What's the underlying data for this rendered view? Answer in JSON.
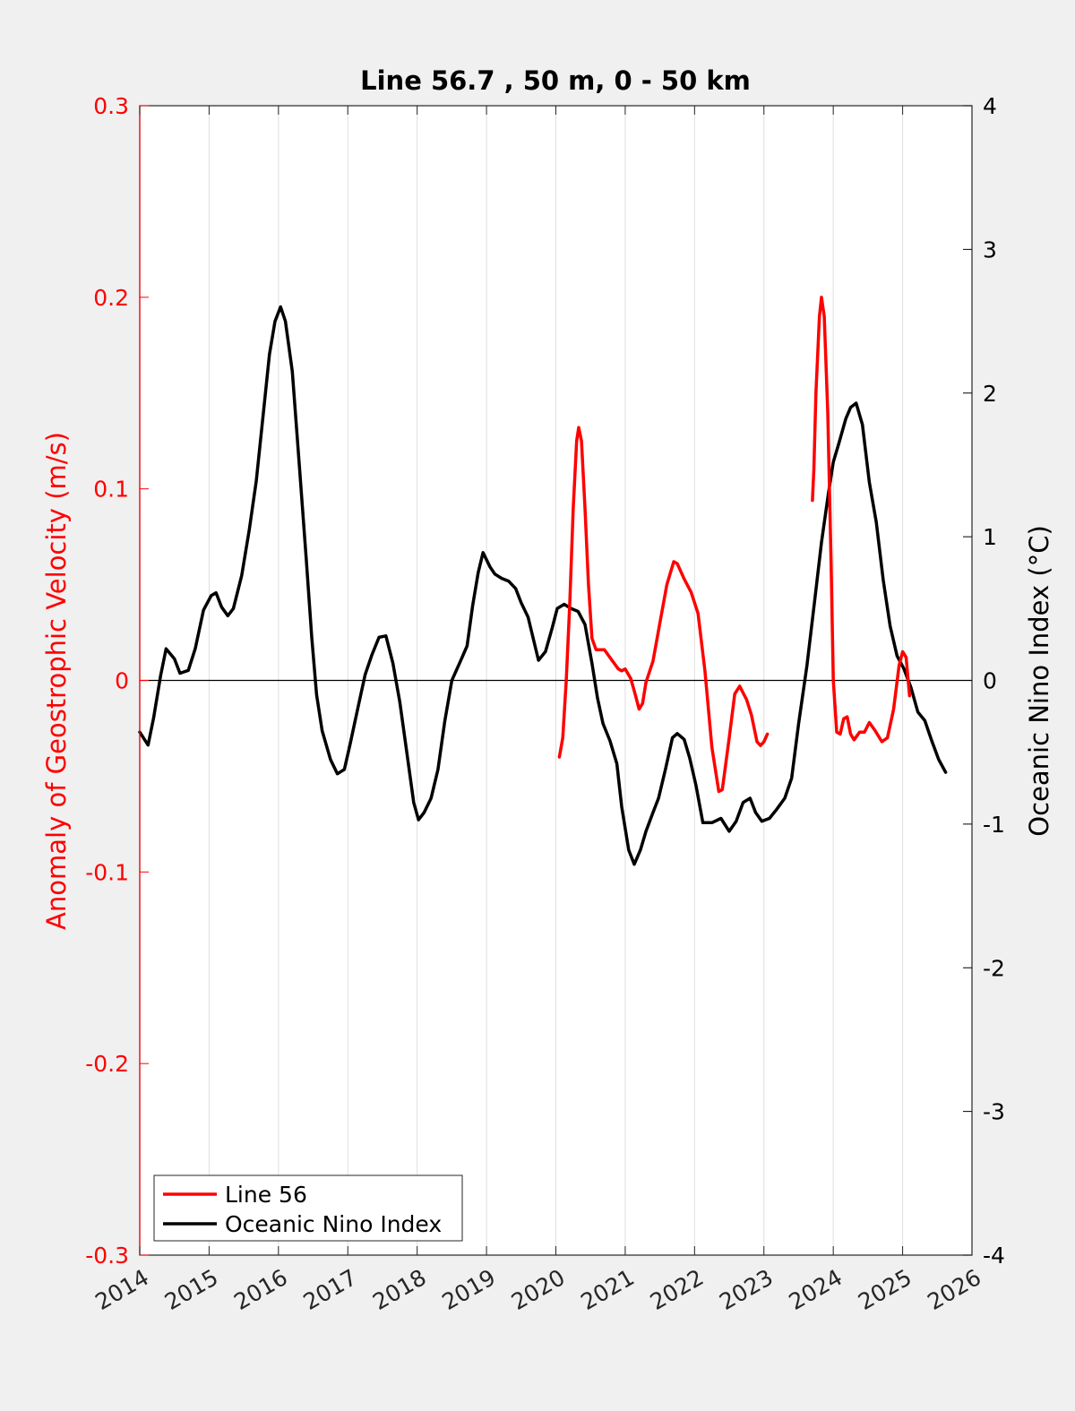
{
  "chart_data": {
    "type": "line",
    "title": "Line 56.7 , 50 m, 0 - 50 km",
    "xlabel": "",
    "ylabel_left": "Anomaly of Geostrophic Velocity (m/s)",
    "ylabel_right": "Oceanic Nino Index (°C)",
    "xlim": [
      2014,
      2026
    ],
    "ylim_left": [
      -0.3,
      0.3
    ],
    "ylim_right": [
      -4,
      4
    ],
    "x_ticks": [
      "2014",
      "2015",
      "2016",
      "2017",
      "2018",
      "2019",
      "2020",
      "2021",
      "2022",
      "2023",
      "2024",
      "2025",
      "2026"
    ],
    "y_ticks_left": [
      "-0.3",
      "-0.2",
      "-0.1",
      "0",
      "0.1",
      "0.2",
      "0.3"
    ],
    "y_ticks_right": [
      "-4",
      "-3",
      "-2",
      "-1",
      "0",
      "1",
      "2",
      "3",
      "4"
    ],
    "grid": "vertical",
    "zero_line": true,
    "legend_position": "bottom-left",
    "colors": {
      "line56": "#ff0000",
      "oni": "#000000",
      "left_axis": "#ff0000",
      "right_axis": "#000000"
    },
    "series": [
      {
        "name": "Line 56",
        "axis": "left",
        "segments": [
          [
            [
              2020.05,
              -0.04
            ],
            [
              2020.1,
              -0.03
            ],
            [
              2020.15,
              0.0
            ],
            [
              2020.2,
              0.04
            ],
            [
              2020.25,
              0.09
            ],
            [
              2020.3,
              0.125
            ],
            [
              2020.33,
              0.132
            ],
            [
              2020.37,
              0.125
            ],
            [
              2020.42,
              0.09
            ],
            [
              2020.47,
              0.05
            ],
            [
              2020.52,
              0.022
            ],
            [
              2020.58,
              0.016
            ],
            [
              2020.7,
              0.016
            ],
            [
              2020.8,
              0.011
            ],
            [
              2020.9,
              0.006
            ],
            [
              2020.95,
              0.005
            ],
            [
              2021.0,
              0.006
            ],
            [
              2021.08,
              0.001
            ],
            [
              2021.15,
              -0.008
            ],
            [
              2021.2,
              -0.015
            ],
            [
              2021.25,
              -0.012
            ],
            [
              2021.3,
              -0.001
            ],
            [
              2021.4,
              0.01
            ],
            [
              2021.5,
              0.03
            ],
            [
              2021.6,
              0.05
            ],
            [
              2021.7,
              0.062
            ],
            [
              2021.75,
              0.061
            ],
            [
              2021.85,
              0.053
            ],
            [
              2021.95,
              0.046
            ],
            [
              2022.05,
              0.035
            ],
            [
              2022.15,
              0.005
            ],
            [
              2022.25,
              -0.035
            ],
            [
              2022.35,
              -0.058
            ],
            [
              2022.4,
              -0.057
            ],
            [
              2022.5,
              -0.03
            ],
            [
              2022.58,
              -0.007
            ],
            [
              2022.65,
              -0.003
            ],
            [
              2022.75,
              -0.01
            ],
            [
              2022.82,
              -0.018
            ],
            [
              2022.9,
              -0.032
            ],
            [
              2022.95,
              -0.034
            ],
            [
              2023.0,
              -0.032
            ],
            [
              2023.05,
              -0.028
            ]
          ],
          [
            [
              2023.7,
              0.094
            ],
            [
              2023.72,
              0.11
            ],
            [
              2023.75,
              0.15
            ],
            [
              2023.8,
              0.19
            ],
            [
              2023.83,
              0.2
            ],
            [
              2023.87,
              0.19
            ],
            [
              2023.92,
              0.14
            ],
            [
              2023.97,
              0.06
            ],
            [
              2024.0,
              0.0
            ],
            [
              2024.05,
              -0.027
            ],
            [
              2024.1,
              -0.028
            ],
            [
              2024.15,
              -0.02
            ],
            [
              2024.2,
              -0.019
            ],
            [
              2024.25,
              -0.028
            ],
            [
              2024.3,
              -0.031
            ],
            [
              2024.38,
              -0.027
            ],
            [
              2024.45,
              -0.027
            ],
            [
              2024.52,
              -0.022
            ],
            [
              2024.6,
              -0.026
            ],
            [
              2024.7,
              -0.032
            ],
            [
              2024.78,
              -0.03
            ],
            [
              2024.87,
              -0.015
            ],
            [
              2024.95,
              0.008
            ],
            [
              2025.0,
              0.015
            ],
            [
              2025.05,
              0.012
            ],
            [
              2025.1,
              -0.008
            ]
          ]
        ]
      },
      {
        "name": "Oceanic Nino Index",
        "axis": "right",
        "segments": [
          [
            [
              2014.0,
              -0.36
            ],
            [
              2014.12,
              -0.45
            ],
            [
              2014.2,
              -0.26
            ],
            [
              2014.3,
              0.03
            ],
            [
              2014.38,
              0.22
            ],
            [
              2014.5,
              0.15
            ],
            [
              2014.58,
              0.05
            ],
            [
              2014.7,
              0.07
            ],
            [
              2014.8,
              0.22
            ],
            [
              2014.92,
              0.49
            ],
            [
              2015.03,
              0.59
            ],
            [
              2015.1,
              0.61
            ],
            [
              2015.18,
              0.51
            ],
            [
              2015.27,
              0.45
            ],
            [
              2015.35,
              0.5
            ],
            [
              2015.47,
              0.73
            ],
            [
              2015.58,
              1.05
            ],
            [
              2015.68,
              1.39
            ],
            [
              2015.78,
              1.85
            ],
            [
              2015.87,
              2.27
            ],
            [
              2015.95,
              2.5
            ],
            [
              2016.03,
              2.6
            ],
            [
              2016.1,
              2.5
            ],
            [
              2016.2,
              2.15
            ],
            [
              2016.3,
              1.5
            ],
            [
              2016.4,
              0.85
            ],
            [
              2016.48,
              0.3
            ],
            [
              2016.55,
              -0.1
            ],
            [
              2016.63,
              -0.35
            ],
            [
              2016.75,
              -0.55
            ],
            [
              2016.85,
              -0.65
            ],
            [
              2016.95,
              -0.62
            ],
            [
              2017.03,
              -0.45
            ],
            [
              2017.15,
              -0.18
            ],
            [
              2017.25,
              0.04
            ],
            [
              2017.35,
              0.18
            ],
            [
              2017.45,
              0.3
            ],
            [
              2017.55,
              0.31
            ],
            [
              2017.65,
              0.12
            ],
            [
              2017.75,
              -0.15
            ],
            [
              2017.85,
              -0.5
            ],
            [
              2017.95,
              -0.85
            ],
            [
              2018.02,
              -0.97
            ],
            [
              2018.1,
              -0.92
            ],
            [
              2018.2,
              -0.82
            ],
            [
              2018.3,
              -0.62
            ],
            [
              2018.4,
              -0.28
            ],
            [
              2018.5,
              0.0
            ],
            [
              2018.62,
              0.13
            ],
            [
              2018.72,
              0.24
            ],
            [
              2018.8,
              0.52
            ],
            [
              2018.88,
              0.75
            ],
            [
              2018.95,
              0.89
            ],
            [
              2019.05,
              0.79
            ],
            [
              2019.12,
              0.74
            ],
            [
              2019.22,
              0.71
            ],
            [
              2019.32,
              0.69
            ],
            [
              2019.42,
              0.64
            ],
            [
              2019.5,
              0.54
            ],
            [
              2019.6,
              0.44
            ],
            [
              2019.68,
              0.28
            ],
            [
              2019.75,
              0.14
            ],
            [
              2019.85,
              0.2
            ],
            [
              2019.95,
              0.37
            ],
            [
              2020.02,
              0.5
            ],
            [
              2020.12,
              0.53
            ],
            [
              2020.22,
              0.5
            ],
            [
              2020.32,
              0.48
            ],
            [
              2020.42,
              0.39
            ],
            [
              2020.52,
              0.12
            ],
            [
              2020.6,
              -0.12
            ],
            [
              2020.68,
              -0.3
            ],
            [
              2020.78,
              -0.42
            ],
            [
              2020.88,
              -0.58
            ],
            [
              2020.95,
              -0.88
            ],
            [
              2021.05,
              -1.18
            ],
            [
              2021.13,
              -1.28
            ],
            [
              2021.22,
              -1.18
            ],
            [
              2021.3,
              -1.05
            ],
            [
              2021.4,
              -0.92
            ],
            [
              2021.48,
              -0.82
            ],
            [
              2021.58,
              -0.62
            ],
            [
              2021.68,
              -0.4
            ],
            [
              2021.75,
              -0.37
            ],
            [
              2021.85,
              -0.41
            ],
            [
              2021.93,
              -0.54
            ],
            [
              2022.02,
              -0.73
            ],
            [
              2022.12,
              -0.99
            ],
            [
              2022.25,
              -0.99
            ],
            [
              2022.38,
              -0.96
            ],
            [
              2022.5,
              -1.05
            ],
            [
              2022.6,
              -0.98
            ],
            [
              2022.7,
              -0.85
            ],
            [
              2022.8,
              -0.82
            ],
            [
              2022.88,
              -0.92
            ],
            [
              2022.97,
              -0.98
            ],
            [
              2023.08,
              -0.96
            ],
            [
              2023.18,
              -0.9
            ],
            [
              2023.3,
              -0.82
            ],
            [
              2023.4,
              -0.68
            ],
            [
              2023.5,
              -0.3
            ],
            [
              2023.62,
              0.1
            ],
            [
              2023.73,
              0.55
            ],
            [
              2023.83,
              0.96
            ],
            [
              2023.93,
              1.3
            ],
            [
              2024.0,
              1.52
            ],
            [
              2024.08,
              1.65
            ],
            [
              2024.18,
              1.82
            ],
            [
              2024.25,
              1.9
            ],
            [
              2024.33,
              1.93
            ],
            [
              2024.42,
              1.78
            ],
            [
              2024.52,
              1.38
            ],
            [
              2024.62,
              1.1
            ],
            [
              2024.72,
              0.7
            ],
            [
              2024.82,
              0.38
            ],
            [
              2024.92,
              0.17
            ],
            [
              2025.02,
              0.08
            ],
            [
              2025.12,
              -0.05
            ],
            [
              2025.22,
              -0.22
            ],
            [
              2025.32,
              -0.28
            ],
            [
              2025.42,
              -0.42
            ],
            [
              2025.52,
              -0.55
            ],
            [
              2025.62,
              -0.64
            ]
          ]
        ]
      }
    ]
  }
}
